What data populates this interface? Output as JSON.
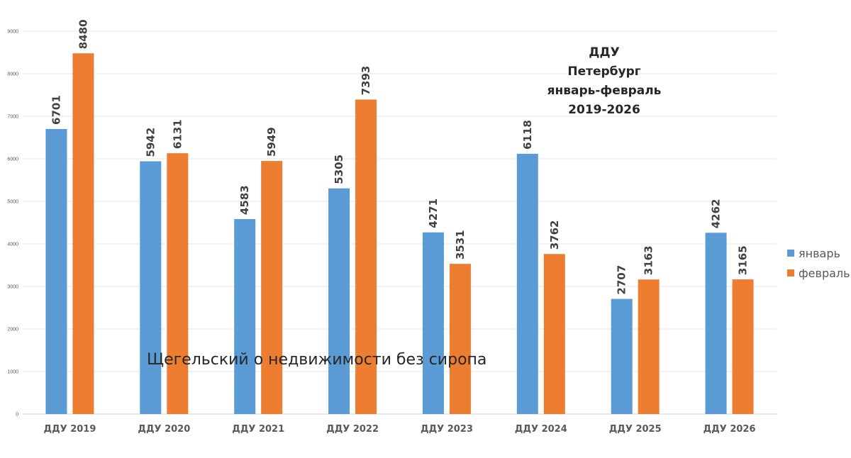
{
  "chart_data": {
    "type": "bar",
    "title": [
      "ДДУ",
      "Петербург",
      "январь-февраль",
      "2019-2026"
    ],
    "categories": [
      "ДДУ 2019",
      "ДДУ 2020",
      "ДДУ 2021",
      "ДДУ 2022",
      "ДДУ 2023",
      "ДДУ 2024",
      "ДДУ 2025",
      "ДДУ 2026"
    ],
    "series": [
      {
        "name": "январь",
        "color": "#5B9BD5",
        "values": [
          6701,
          5942,
          4583,
          5305,
          4271,
          6118,
          2707,
          4262
        ]
      },
      {
        "name": "февраль",
        "color": "#ED7D31",
        "values": [
          8480,
          6131,
          5949,
          7393,
          3531,
          3762,
          3163,
          3165
        ]
      }
    ],
    "ylim": [
      0,
      9000
    ],
    "yticks": [
      0,
      1000,
      2000,
      3000,
      4000,
      5000,
      6000,
      7000,
      8000,
      9000
    ],
    "grid": true,
    "legend": "right",
    "xlabel": "",
    "ylabel": "",
    "watermark": "Щегельский о недвижимости без сиропа"
  }
}
